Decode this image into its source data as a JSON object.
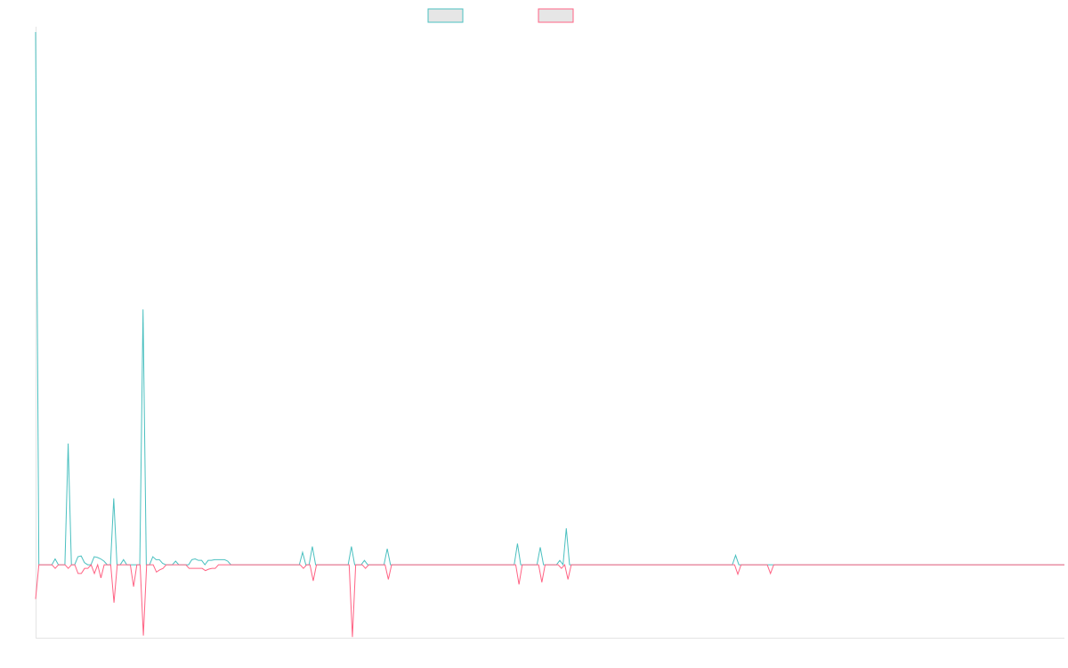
{
  "chart_data": {
    "type": "line",
    "xlabel": "",
    "ylabel": "",
    "ylim": [
      -1.0,
      7.3
    ],
    "grid": false,
    "legend_position": "top-center",
    "colors": {
      "series_a": "#4bc0c0",
      "series_b": "#ff6384",
      "legend_fill": "#e6e6e6",
      "axis": "#e4e4e4"
    },
    "series": [
      {
        "values": [
          7.3,
          0,
          0,
          0,
          0,
          0,
          0.08,
          0,
          0,
          0,
          1.66,
          0,
          0,
          0.11,
          0.12,
          0.03,
          0,
          0,
          0.11,
          0.1,
          0.08,
          0.05,
          0,
          0,
          0.91,
          0,
          0,
          0.07,
          0,
          0,
          0,
          0,
          0,
          3.5,
          0,
          0,
          0.11,
          0.07,
          0.07,
          0.02,
          0,
          0,
          0,
          0.05,
          0,
          0,
          0,
          0,
          0.07,
          0.08,
          0.06,
          0.06,
          0,
          0.06,
          0.06,
          0.07,
          0.07,
          0.07,
          0.07,
          0.05,
          0,
          0,
          0,
          0,
          0,
          0,
          0,
          0,
          0,
          0,
          0,
          0,
          0,
          0,
          0,
          0,
          0,
          0,
          0,
          0,
          0,
          0,
          0.17,
          0,
          0,
          0.25,
          0,
          0,
          0,
          0,
          0,
          0,
          0,
          0,
          0,
          0,
          0,
          0.25,
          0,
          0,
          0,
          0.06,
          0,
          0,
          0,
          0,
          0,
          0,
          0.22,
          0,
          0,
          0,
          0,
          0,
          0,
          0,
          0,
          0,
          0,
          0,
          0,
          0,
          0,
          0,
          0,
          0,
          0,
          0,
          0,
          0,
          0,
          0,
          0,
          0,
          0,
          0,
          0,
          0,
          0,
          0,
          0,
          0,
          0,
          0,
          0,
          0,
          0,
          0,
          0.29,
          0,
          0,
          0,
          0,
          0,
          0,
          0.24,
          0,
          0,
          0,
          0,
          0,
          0.06,
          0,
          0.5,
          0,
          0,
          0,
          0,
          0,
          0,
          0,
          0,
          0,
          0,
          0,
          0,
          0,
          0,
          0,
          0,
          0,
          0,
          0,
          0,
          0,
          0,
          0,
          0,
          0,
          0,
          0,
          0,
          0,
          0,
          0,
          0,
          0,
          0,
          0,
          0,
          0,
          0,
          0,
          0,
          0,
          0,
          0,
          0,
          0,
          0,
          0,
          0,
          0,
          0,
          0,
          0.13,
          0,
          0,
          0,
          0,
          0,
          0,
          0,
          0,
          0,
          0,
          0,
          0,
          0,
          0,
          0,
          0,
          0,
          0,
          0,
          0,
          0,
          0,
          0,
          0,
          0,
          0,
          0,
          0,
          0,
          0,
          0,
          0,
          0,
          0,
          0,
          0,
          0,
          0,
          0,
          0,
          0,
          0,
          0,
          0,
          0,
          0,
          0,
          0,
          0,
          0,
          0,
          0,
          0,
          0,
          0,
          0,
          0,
          0,
          0,
          0,
          0,
          0,
          0,
          0,
          0,
          0,
          0,
          0,
          0,
          0,
          0,
          0,
          0,
          0,
          0,
          0,
          0,
          0,
          0,
          0,
          0,
          0,
          0,
          0,
          0,
          0,
          0,
          0,
          0,
          0,
          0,
          0,
          0,
          0,
          0,
          0,
          0,
          0,
          0,
          0,
          0
        ]
      },
      {
        "values": [
          -0.47,
          0,
          0,
          0,
          0,
          0,
          -0.05,
          0,
          0,
          0,
          -0.05,
          0,
          0,
          -0.12,
          -0.12,
          -0.05,
          -0.05,
          0,
          -0.12,
          0,
          -0.18,
          0,
          0,
          0,
          -0.52,
          0,
          0,
          0,
          0,
          0,
          -0.3,
          0,
          0,
          -0.97,
          0,
          0,
          0,
          -0.1,
          -0.07,
          -0.05,
          0,
          0,
          0,
          0,
          0,
          0,
          0,
          -0.05,
          -0.05,
          -0.05,
          -0.05,
          -0.05,
          -0.08,
          -0.06,
          -0.05,
          -0.05,
          0,
          0,
          0,
          0,
          0,
          0,
          0,
          0,
          0,
          0,
          0,
          0,
          0,
          0,
          0,
          0,
          0,
          0,
          0,
          0,
          0,
          0,
          0,
          0,
          0,
          0,
          -0.05,
          0,
          0,
          -0.22,
          0,
          0,
          0,
          0,
          0,
          0,
          0,
          0,
          0,
          0,
          0,
          -0.99,
          0,
          0,
          0,
          -0.05,
          0,
          0,
          0,
          0,
          0,
          0,
          -0.2,
          0,
          0,
          0,
          0,
          0,
          0,
          0,
          0,
          0,
          0,
          0,
          0,
          0,
          0,
          0,
          0,
          0,
          0,
          0,
          0,
          0,
          0,
          0,
          0,
          0,
          0,
          0,
          0,
          0,
          0,
          0,
          0,
          0,
          0,
          0,
          0,
          0,
          0,
          0,
          -0.27,
          0,
          0,
          0,
          0,
          0,
          0,
          -0.24,
          0,
          0,
          0,
          0,
          0,
          -0.05,
          0,
          -0.2,
          0,
          0,
          0,
          0,
          0,
          0,
          0,
          0,
          0,
          0,
          0,
          0,
          0,
          0,
          0,
          0,
          0,
          0,
          0,
          0,
          0,
          0,
          0,
          0,
          0,
          0,
          0,
          0,
          0,
          0,
          0,
          0,
          0,
          0,
          0,
          0,
          0,
          0,
          0,
          0,
          0,
          0,
          0,
          0,
          0,
          0,
          0,
          0,
          0,
          0,
          0,
          -0.13,
          0,
          0,
          0,
          0,
          0,
          0,
          0,
          0,
          0,
          -0.12,
          0,
          0,
          0,
          0,
          0,
          0,
          0,
          0,
          0,
          0,
          0,
          0,
          0,
          0,
          0,
          0,
          0,
          0,
          0,
          0,
          0,
          0,
          0,
          0,
          0,
          0,
          0,
          0,
          0,
          0,
          0,
          0,
          0,
          0,
          0,
          0,
          0,
          0,
          0,
          0,
          0,
          0,
          0,
          0,
          0,
          0,
          0,
          0,
          0,
          0,
          0,
          0,
          0,
          0,
          0,
          0,
          0,
          0,
          0,
          0,
          0,
          0,
          0,
          0,
          0,
          0,
          0,
          0,
          0,
          0,
          0,
          0,
          0,
          0,
          0,
          0,
          0,
          0,
          0,
          0,
          0,
          0,
          0,
          0,
          0,
          0,
          0,
          0,
          0,
          0
        ]
      }
    ]
  }
}
